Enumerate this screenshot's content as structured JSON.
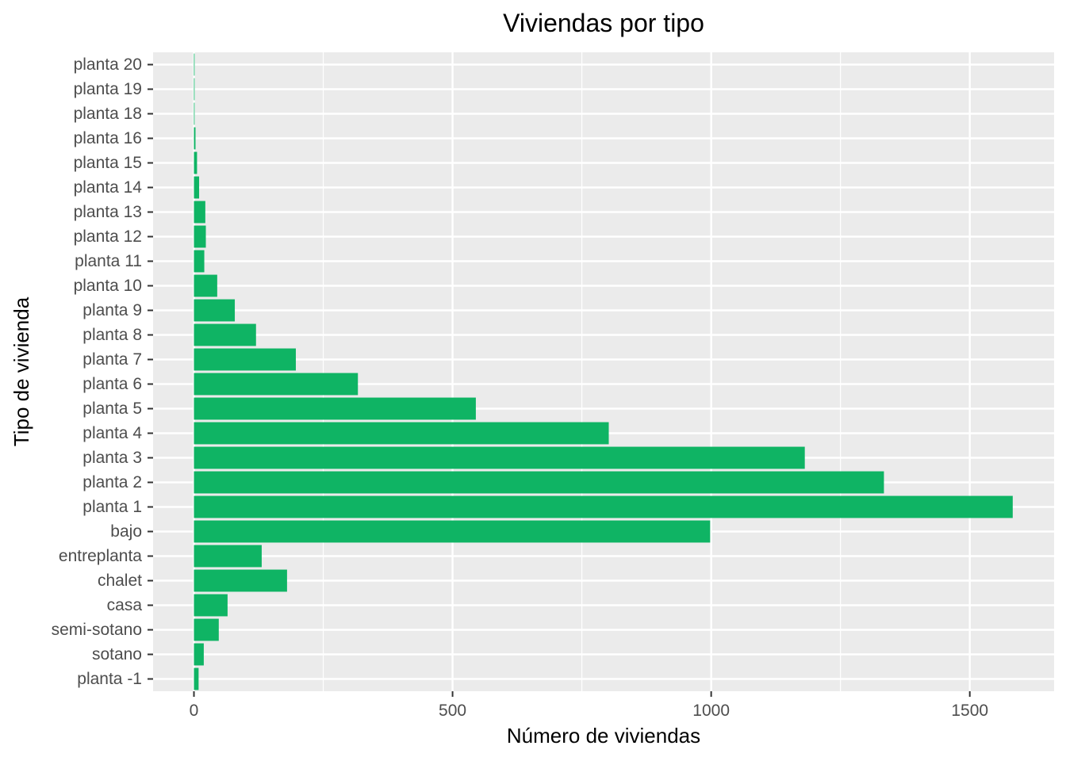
{
  "chart_data": {
    "type": "bar",
    "orientation": "horizontal",
    "title": "Viviendas por tipo",
    "xlabel": "Número de viviendas",
    "ylabel": "Tipo de vivienda",
    "categories": [
      "planta -1",
      "sotano",
      "semi-sotano",
      "casa",
      "chalet",
      "entreplanta",
      "bajo",
      "planta 1",
      "planta 2",
      "planta 3",
      "planta 4",
      "planta 5",
      "planta 6",
      "planta 7",
      "planta 8",
      "planta 9",
      "planta 10",
      "planta 11",
      "planta 12",
      "planta 13",
      "planta 14",
      "planta 15",
      "planta 16",
      "planta 18",
      "planta 19",
      "planta 20"
    ],
    "values": [
      9,
      19,
      48,
      65,
      180,
      131,
      998,
      1583,
      1334,
      1181,
      802,
      545,
      317,
      197,
      120,
      79,
      45,
      20,
      23,
      22,
      10,
      6,
      3,
      1,
      1,
      1
    ],
    "xlim": [
      -79,
      1663
    ],
    "xticks": [
      "0",
      "500",
      "1000",
      "1500"
    ],
    "xtick_values": [
      0,
      500,
      1000,
      1500
    ],
    "grid": true,
    "bar_color": "#0fb464",
    "panel_background": "#ebebeb",
    "grid_color": "#ffffff"
  }
}
